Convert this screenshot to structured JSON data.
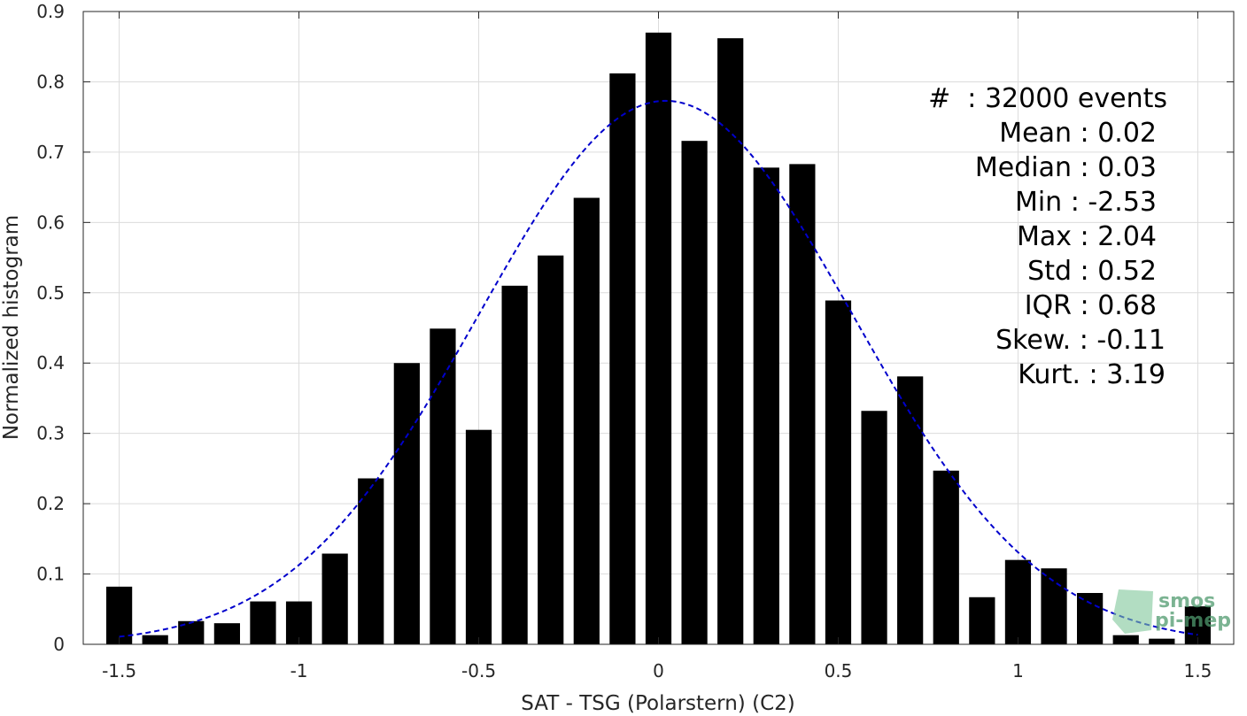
{
  "chart_data": {
    "type": "bar",
    "xlabel": "SAT - TSG (Polarstern) (C2)",
    "ylabel": "Normalized histogram",
    "xlim": [
      -1.6,
      1.6
    ],
    "ylim": [
      0,
      0.9
    ],
    "xticks": [
      -1.5,
      -1,
      -0.5,
      0,
      0.5,
      1,
      1.5
    ],
    "xtick_labels": [
      "-1.5",
      "-1",
      "-0.5",
      "0",
      "0.5",
      "1",
      "1.5"
    ],
    "yticks": [
      0,
      0.1,
      0.2,
      0.3,
      0.4,
      0.5,
      0.6,
      0.7,
      0.8,
      0.9
    ],
    "ytick_labels": [
      "0",
      "0.1",
      "0.2",
      "0.3",
      "0.4",
      "0.5",
      "0.6",
      "0.7",
      "0.8",
      "0.9"
    ],
    "grid": true,
    "bar_color": "#000000",
    "bar_width": 0.072,
    "bins": [
      -1.5,
      -1.4,
      -1.3,
      -1.2,
      -1.1,
      -1.0,
      -0.9,
      -0.8,
      -0.7,
      -0.6,
      -0.5,
      -0.4,
      -0.3,
      -0.2,
      -0.1,
      0.0,
      0.1,
      0.2,
      0.3,
      0.4,
      0.5,
      0.6,
      0.7,
      0.8,
      0.9,
      1.0,
      1.1,
      1.2,
      1.3,
      1.4,
      1.5
    ],
    "values": [
      0.082,
      0.013,
      0.033,
      0.03,
      0.061,
      0.061,
      0.129,
      0.236,
      0.4,
      0.449,
      0.305,
      0.51,
      0.553,
      0.635,
      0.812,
      0.87,
      0.716,
      0.862,
      0.678,
      0.683,
      0.489,
      0.332,
      0.381,
      0.247,
      0.067,
      0.12,
      0.108,
      0.073,
      0.013,
      0.008,
      0.054
    ],
    "fit": {
      "type": "gaussian",
      "mean": 0.02,
      "std": 0.52,
      "peak": 0.773,
      "color": "#0000cc",
      "style": "dashed",
      "x_range": [
        -1.5,
        1.5
      ]
    },
    "annotations": [
      "#  : 32000 events",
      "Mean : 0.02",
      "Median : 0.03",
      "Min : -2.53",
      "Max : 2.04",
      "Std : 0.52",
      "IQR : 0.68",
      "Skew. : -0.11",
      "Kurt. : 3.19"
    ],
    "logo": {
      "line1": "smos",
      "line2": "pi-mep"
    }
  }
}
